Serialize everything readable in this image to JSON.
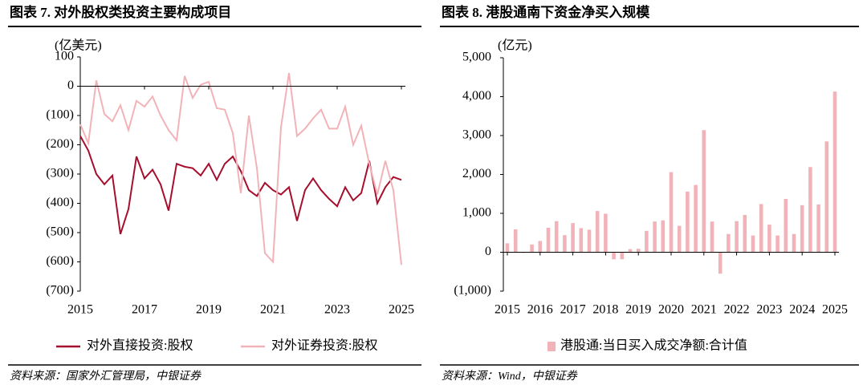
{
  "chart_data": [
    {
      "type": "line",
      "title": "图表 7. 对外股权类投资主要构成项目",
      "y_unit": "(亿美元)",
      "source": "资料来源：国家外汇管理局，中银证券",
      "x": [
        2015,
        2015.25,
        2015.5,
        2015.75,
        2016,
        2016.25,
        2016.5,
        2016.75,
        2017,
        2017.25,
        2017.5,
        2017.75,
        2018,
        2018.25,
        2018.5,
        2018.75,
        2019,
        2019.25,
        2019.5,
        2019.75,
        2020,
        2020.25,
        2020.5,
        2020.75,
        2021,
        2021.25,
        2021.5,
        2021.75,
        2022,
        2022.25,
        2022.5,
        2022.75,
        2023,
        2023.25,
        2023.5,
        2023.75,
        2024,
        2024.25,
        2024.5,
        2024.75,
        2025
      ],
      "series": [
        {
          "name": "对外直接投资:股权",
          "color": "#a50f2d",
          "values": [
            -170,
            -220,
            -300,
            -335,
            -305,
            -505,
            -420,
            -240,
            -315,
            -285,
            -335,
            -425,
            -265,
            -275,
            -280,
            -305,
            -265,
            -320,
            -265,
            -240,
            -290,
            -355,
            -375,
            -330,
            -355,
            -370,
            -345,
            -460,
            -355,
            -315,
            -355,
            -385,
            -410,
            -345,
            -390,
            -365,
            -255,
            -400,
            -345,
            -310,
            -320
          ]
        },
        {
          "name": "对外证券投资:股权",
          "color": "#f2b3b8",
          "values": [
            -130,
            -195,
            20,
            -95,
            -120,
            -65,
            -150,
            -50,
            -70,
            -35,
            -100,
            -150,
            -185,
            35,
            -40,
            5,
            15,
            -75,
            -80,
            -160,
            -365,
            -100,
            -280,
            -570,
            -600,
            -140,
            45,
            -170,
            -145,
            -110,
            -80,
            -145,
            -145,
            -70,
            -200,
            -135,
            -265,
            -370,
            -255,
            -355,
            -610
          ]
        }
      ],
      "xlim": [
        2015,
        2025
      ],
      "xticks": [
        2015,
        2017,
        2019,
        2021,
        2023,
        2025
      ],
      "ylim": [
        -700,
        100
      ],
      "yticks": [
        100,
        0,
        {
          "value": -100,
          "label": "(100)"
        },
        {
          "value": -200,
          "label": "(200)"
        },
        {
          "value": -300,
          "label": "(300)"
        },
        {
          "value": -400,
          "label": "(400)"
        },
        {
          "value": -500,
          "label": "(500)"
        },
        {
          "value": -600,
          "label": "(600)"
        },
        {
          "value": -700,
          "label": "(700)"
        }
      ],
      "negative_tick_color": "#c00000",
      "grid": false
    },
    {
      "type": "bar",
      "title": "图表 8. 港股通南下资金净买入规模",
      "y_unit": "(亿元)",
      "source": "资料来源：Wind，中银证券",
      "x": [
        2015,
        2015.25,
        2015.5,
        2015.75,
        2016,
        2016.25,
        2016.5,
        2016.75,
        2017,
        2017.25,
        2017.5,
        2017.75,
        2018,
        2018.25,
        2018.5,
        2018.75,
        2019,
        2019.25,
        2019.5,
        2019.75,
        2020,
        2020.25,
        2020.5,
        2020.75,
        2021,
        2021.25,
        2021.5,
        2021.75,
        2022,
        2022.25,
        2022.5,
        2022.75,
        2023,
        2023.25,
        2023.5,
        2023.75,
        2024,
        2024.25,
        2024.5,
        2024.75,
        2025
      ],
      "series": [
        {
          "name": "港股通:当日买入成交净额:合计值",
          "color": "#f2b3b8",
          "values": [
            230,
            590,
            -20,
            200,
            290,
            630,
            800,
            440,
            750,
            620,
            580,
            1060,
            990,
            -180,
            -180,
            80,
            90,
            550,
            790,
            820,
            2060,
            680,
            1560,
            1730,
            3140,
            790,
            -550,
            470,
            800,
            960,
            430,
            1240,
            710,
            430,
            1370,
            470,
            1210,
            2190,
            1230,
            2850,
            4130
          ]
        }
      ],
      "xlim": [
        2015,
        2025
      ],
      "xticks": [
        2015,
        2016,
        2017,
        2018,
        2019,
        2020,
        2021,
        2022,
        2023,
        2024,
        2025
      ],
      "ylim": [
        -1000,
        5000
      ],
      "yticks": [
        {
          "value": 5000,
          "label": "5,000"
        },
        {
          "value": 4000,
          "label": "4,000"
        },
        {
          "value": 3000,
          "label": "3,000"
        },
        {
          "value": 2000,
          "label": "2,000"
        },
        {
          "value": 1000,
          "label": "1,000"
        },
        0,
        {
          "value": -1000,
          "label": "(1,000)"
        }
      ],
      "negative_tick_color": "#c00000",
      "grid": false
    }
  ]
}
